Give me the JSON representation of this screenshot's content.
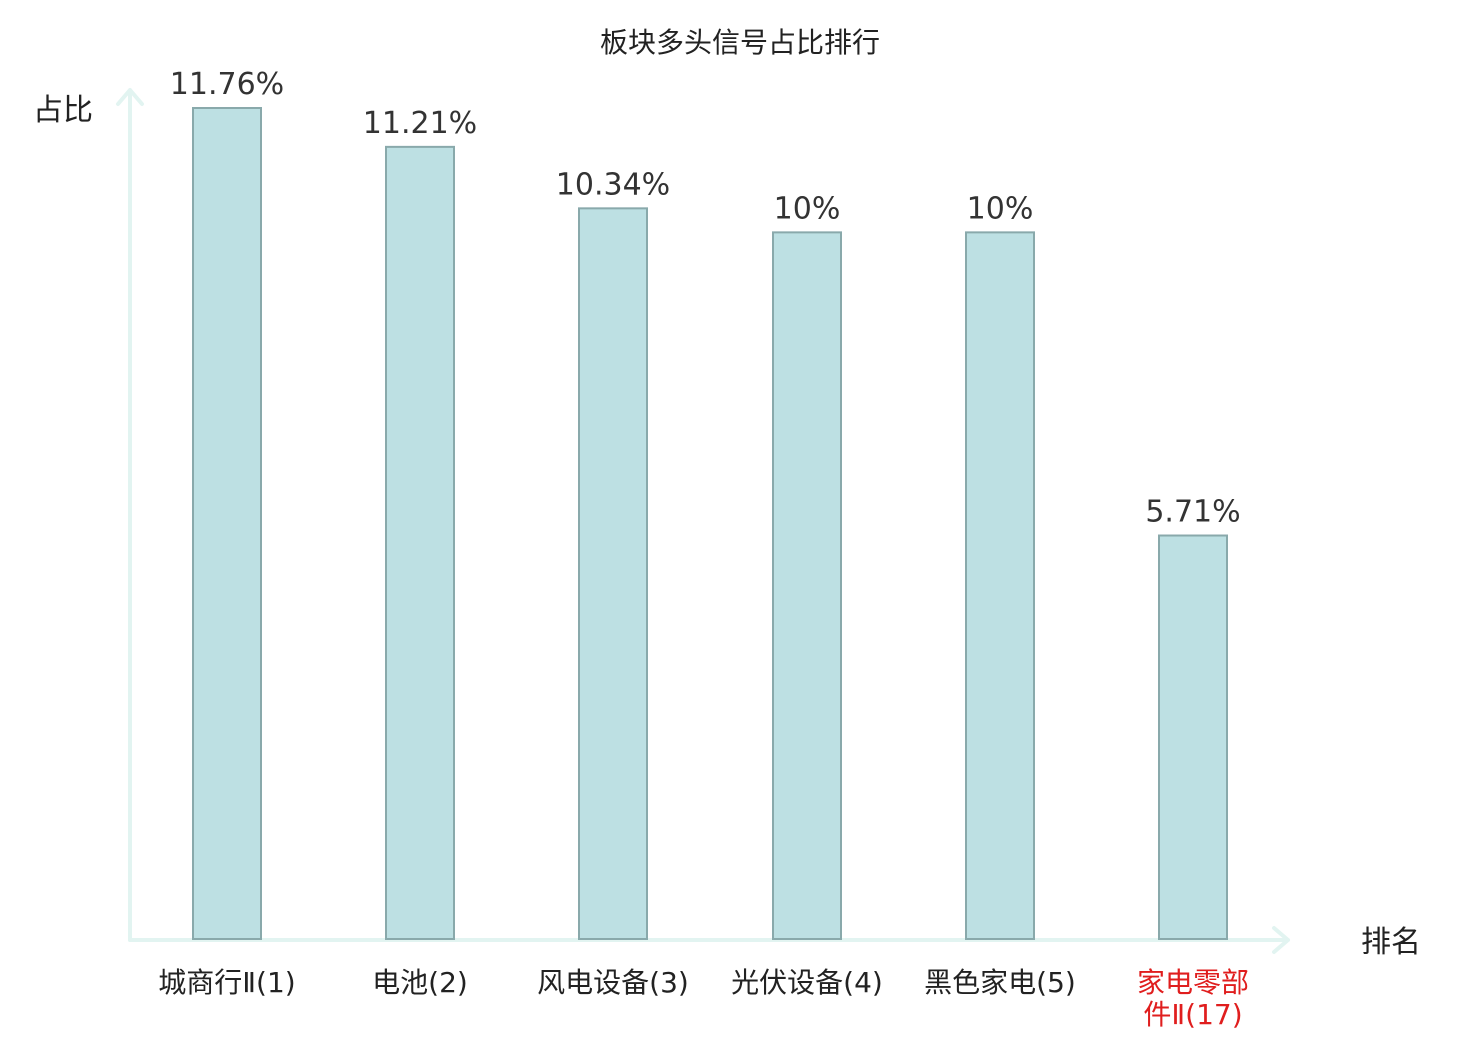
{
  "chart_data": {
    "type": "bar",
    "title": "板块多头信号占比排行",
    "xlabel": "排名",
    "ylabel": "占比",
    "categories": [
      [
        "城商行Ⅱ(1)"
      ],
      [
        "电池(2)"
      ],
      [
        "风电设备(3)"
      ],
      [
        "光伏设备(4)"
      ],
      [
        "黑色家电(5)"
      ],
      [
        "家电零部",
        "件Ⅱ(17)"
      ]
    ],
    "values": [
      11.76,
      11.21,
      10.34,
      10,
      10,
      5.71
    ],
    "value_labels": [
      "11.76%",
      "11.21%",
      "10.34%",
      "10%",
      "10%",
      "5.71%"
    ],
    "highlight_index": 5,
    "ylim": [
      0,
      11.76
    ],
    "grid": false,
    "legend": "none",
    "colors": {
      "bar_fill": "#bde0e3",
      "bar_stroke": "#89a9ab",
      "axis": "#e2f4f1",
      "highlight_text": "#e01e1e",
      "text": "#222222"
    }
  }
}
